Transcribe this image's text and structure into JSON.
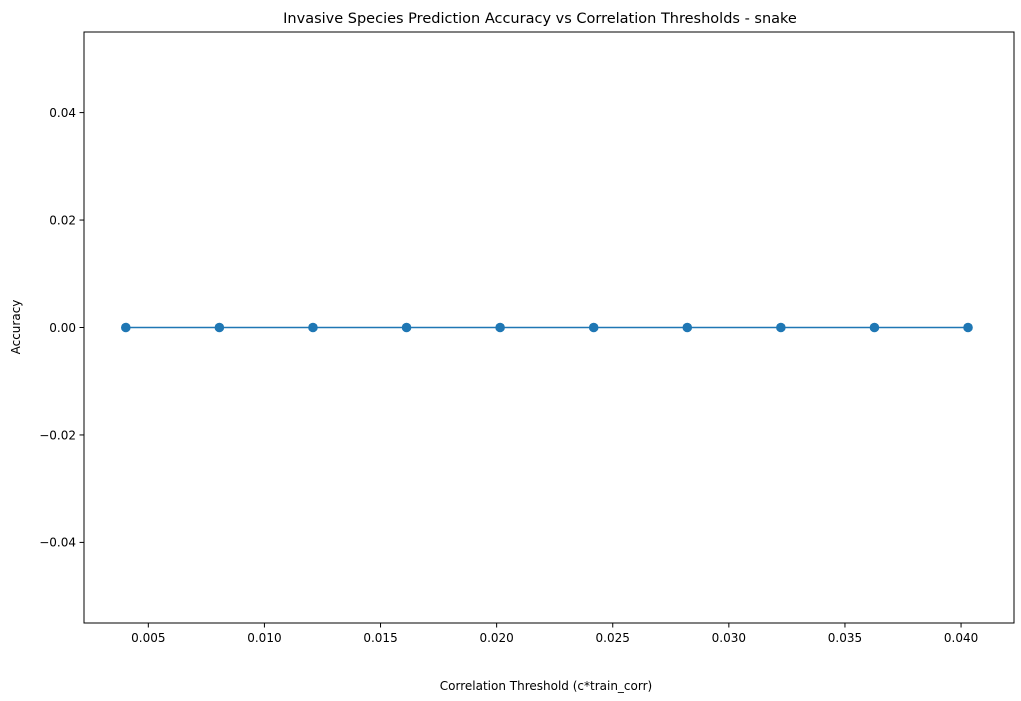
{
  "chart_data": {
    "type": "line",
    "title": "Invasive Species Prediction Accuracy vs Correlation Thresholds - snake",
    "xlabel": "Correlation Threshold (c*train_corr)",
    "ylabel": "Accuracy",
    "xlim": [
      0.00223,
      0.04228
    ],
    "ylim": [
      -0.055,
      0.055
    ],
    "grid": false,
    "legend": "none",
    "x_ticks": [
      0.005,
      0.01,
      0.015,
      0.02,
      0.025,
      0.03,
      0.035,
      0.04
    ],
    "x_tick_labels": [
      "0.005",
      "0.010",
      "0.015",
      "0.020",
      "0.025",
      "0.030",
      "0.035",
      "0.040"
    ],
    "y_ticks": [
      -0.04,
      -0.02,
      0.0,
      0.02,
      0.04
    ],
    "y_tick_labels": [
      "−0.04",
      "−0.02",
      "0.00",
      "0.02",
      "0.04"
    ],
    "series": [
      {
        "color": "#1f77b4",
        "marker": "circle",
        "x": [
          0.00403,
          0.00806,
          0.01209,
          0.01612,
          0.02015,
          0.02418,
          0.02821,
          0.03224,
          0.03627,
          0.0403
        ],
        "y": [
          0,
          0,
          0,
          0,
          0,
          0,
          0,
          0,
          0,
          0
        ]
      }
    ]
  }
}
